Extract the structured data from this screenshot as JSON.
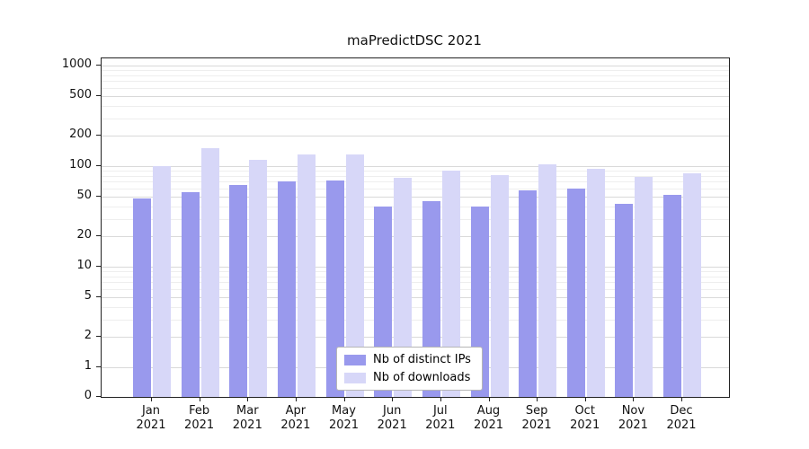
{
  "chart_data": {
    "type": "bar",
    "title": "maPredictDSC 2021",
    "categories": [
      "Jan",
      "Feb",
      "Mar",
      "Apr",
      "May",
      "Jun",
      "Jul",
      "Aug",
      "Sep",
      "Oct",
      "Nov",
      "Dec"
    ],
    "year": "2021",
    "series": [
      {
        "name": "Nb of distinct IPs",
        "color": "#9999ed",
        "values": [
          48,
          55,
          65,
          70,
          72,
          40,
          45,
          40,
          58,
          60,
          42,
          52
        ]
      },
      {
        "name": "Nb of downloads",
        "color": "#d7d7f8",
        "values": [
          100,
          150,
          115,
          132,
          132,
          77,
          90,
          82,
          105,
          94,
          78,
          85
        ]
      }
    ],
    "yticks": [
      0,
      1,
      2,
      5,
      10,
      20,
      50,
      100,
      200,
      500,
      1000
    ],
    "scale": "symlog",
    "ylim": [
      0,
      1500
    ],
    "grid": "horizontal major and minor",
    "legend_position": "lower center"
  }
}
